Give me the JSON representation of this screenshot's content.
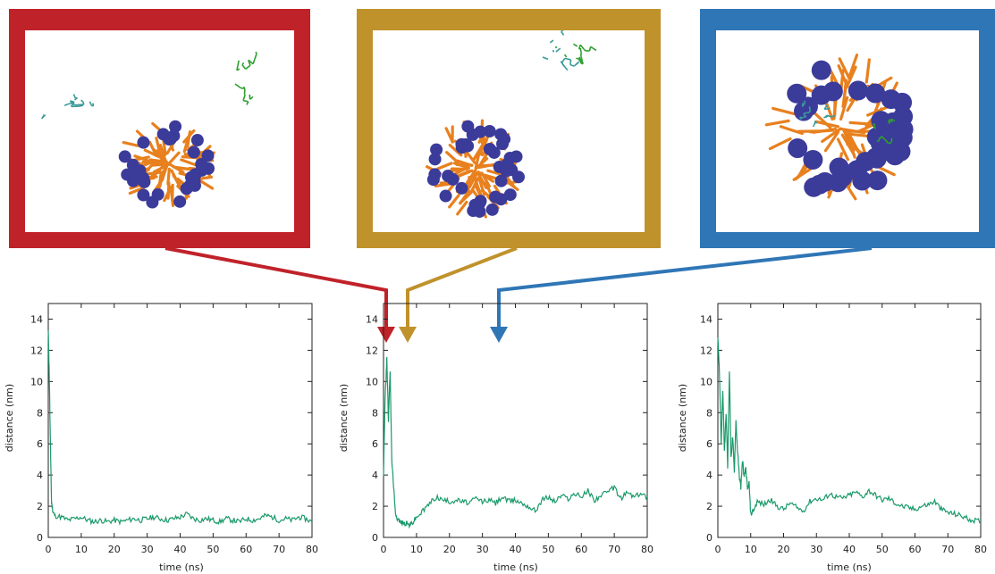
{
  "panels": [
    {
      "id": "snapshot-early",
      "color": "#c0222a"
    },
    {
      "id": "snapshot-mid",
      "color": "#c0922c"
    },
    {
      "id": "snapshot-late",
      "color": "#2f76b6"
    }
  ],
  "molecule_colors": {
    "micelle_core": "#e8801e",
    "micelle_heads": "#3b3b9a",
    "drug_teal": "#3a9a9a",
    "drug_green": "#2da02d"
  },
  "chart_data": [
    {
      "type": "line",
      "xlabel": "time (ns)",
      "ylabel": "distance (nm)",
      "xlim": [
        0,
        80
      ],
      "ylim": [
        0,
        15
      ],
      "xticks": [
        "0",
        "10",
        "20",
        "30",
        "40",
        "50",
        "60",
        "70",
        "80"
      ],
      "yticks": [
        "0",
        "2",
        "4",
        "6",
        "8",
        "10",
        "12",
        "14"
      ],
      "line_color": "#1a9a6a",
      "series": [
        {
          "x": [
            0,
            0.3,
            0.6,
            1,
            1.5,
            2,
            4,
            6,
            8,
            10,
            12,
            14,
            16,
            18,
            20,
            22,
            24,
            26,
            28,
            30,
            32,
            34,
            36,
            38,
            40,
            42,
            44,
            46,
            48,
            50,
            52,
            54,
            56,
            58,
            60,
            62,
            64,
            66,
            68,
            70,
            72,
            74,
            76,
            78,
            80
          ],
          "y": [
            13.2,
            10.5,
            6.5,
            2.2,
            1.6,
            1.4,
            1.3,
            1.1,
            1.2,
            1.3,
            1.1,
            1.0,
            1.1,
            1.0,
            1.1,
            1.0,
            1.1,
            1.2,
            1.1,
            1.2,
            1.3,
            1.2,
            1.1,
            1.2,
            1.3,
            1.5,
            1.2,
            1.1,
            1.2,
            1.1,
            1.0,
            1.2,
            1.1,
            1.0,
            1.2,
            1.1,
            1.2,
            1.4,
            1.3,
            1.1,
            1.2,
            1.1,
            1.3,
            1.2,
            1.0
          ]
        }
      ]
    },
    {
      "type": "line",
      "xlabel": "time (ns)",
      "ylabel": "distance (nm)",
      "xlim": [
        0,
        80
      ],
      "ylim": [
        0,
        15
      ],
      "xticks": [
        "0",
        "10",
        "20",
        "30",
        "40",
        "50",
        "60",
        "70",
        "80"
      ],
      "yticks": [
        "0",
        "2",
        "4",
        "6",
        "8",
        "10",
        "12",
        "14"
      ],
      "line_color": "#1a9a6a",
      "series": [
        {
          "x": [
            0,
            0.5,
            1,
            1.5,
            2,
            2.5,
            3,
            3.5,
            4,
            5,
            6,
            7,
            8,
            9,
            10,
            12,
            14,
            16,
            18,
            20,
            22,
            24,
            26,
            28,
            30,
            32,
            34,
            36,
            38,
            40,
            42,
            44,
            46,
            48,
            50,
            52,
            54,
            56,
            58,
            60,
            62,
            64,
            66,
            68,
            70,
            72,
            74,
            76,
            78,
            80
          ],
          "y": [
            4.0,
            9.0,
            11.5,
            7.5,
            10.8,
            5.0,
            3.5,
            1.8,
            1.3,
            1.0,
            0.9,
            0.9,
            0.8,
            1.0,
            1.3,
            1.7,
            2.2,
            2.6,
            2.4,
            2.3,
            2.4,
            2.3,
            2.2,
            2.5,
            2.3,
            2.4,
            2.2,
            2.6,
            2.3,
            2.4,
            2.2,
            2.0,
            1.7,
            2.4,
            2.6,
            2.3,
            2.7,
            2.5,
            2.8,
            2.6,
            3.0,
            2.4,
            2.7,
            2.9,
            3.2,
            2.5,
            2.9,
            2.6,
            2.8,
            2.6
          ]
        }
      ]
    },
    {
      "type": "line",
      "xlabel": "time (ns)",
      "ylabel": "distance (nm)",
      "xlim": [
        0,
        80
      ],
      "ylim": [
        0,
        15
      ],
      "xticks": [
        "0",
        "10",
        "20",
        "30",
        "40",
        "50",
        "60",
        "70",
        "80"
      ],
      "yticks": [
        "0",
        "2",
        "4",
        "6",
        "8",
        "10",
        "12",
        "14"
      ],
      "line_color": "#1a9a6a",
      "series": [
        {
          "x": [
            0,
            0.5,
            1,
            1.5,
            2,
            2.5,
            3,
            3.5,
            4,
            4.5,
            5,
            5.5,
            6,
            6.5,
            7,
            7.5,
            8,
            8.5,
            9,
            9.5,
            10,
            11,
            12,
            14,
            16,
            18,
            20,
            22,
            24,
            26,
            28,
            30,
            32,
            34,
            36,
            38,
            40,
            42,
            44,
            46,
            48,
            50,
            52,
            54,
            56,
            58,
            60,
            62,
            64,
            66,
            68,
            70,
            72,
            74,
            76,
            78,
            80
          ],
          "y": [
            13.0,
            10.5,
            6.0,
            9.5,
            5.5,
            8.0,
            4.5,
            10.8,
            5.0,
            6.5,
            4.2,
            7.5,
            5.5,
            4.0,
            3.2,
            5.0,
            3.8,
            4.5,
            3.0,
            3.5,
            1.5,
            1.8,
            2.3,
            2.1,
            2.4,
            2.0,
            1.8,
            2.2,
            1.9,
            1.7,
            2.3,
            2.5,
            2.4,
            2.8,
            2.6,
            2.5,
            2.7,
            2.9,
            2.6,
            3.0,
            2.7,
            2.4,
            2.5,
            2.2,
            2.0,
            1.9,
            1.8,
            2.0,
            2.1,
            2.3,
            1.8,
            1.6,
            1.5,
            1.4,
            1.2,
            1.1,
            1.0
          ]
        }
      ]
    }
  ]
}
